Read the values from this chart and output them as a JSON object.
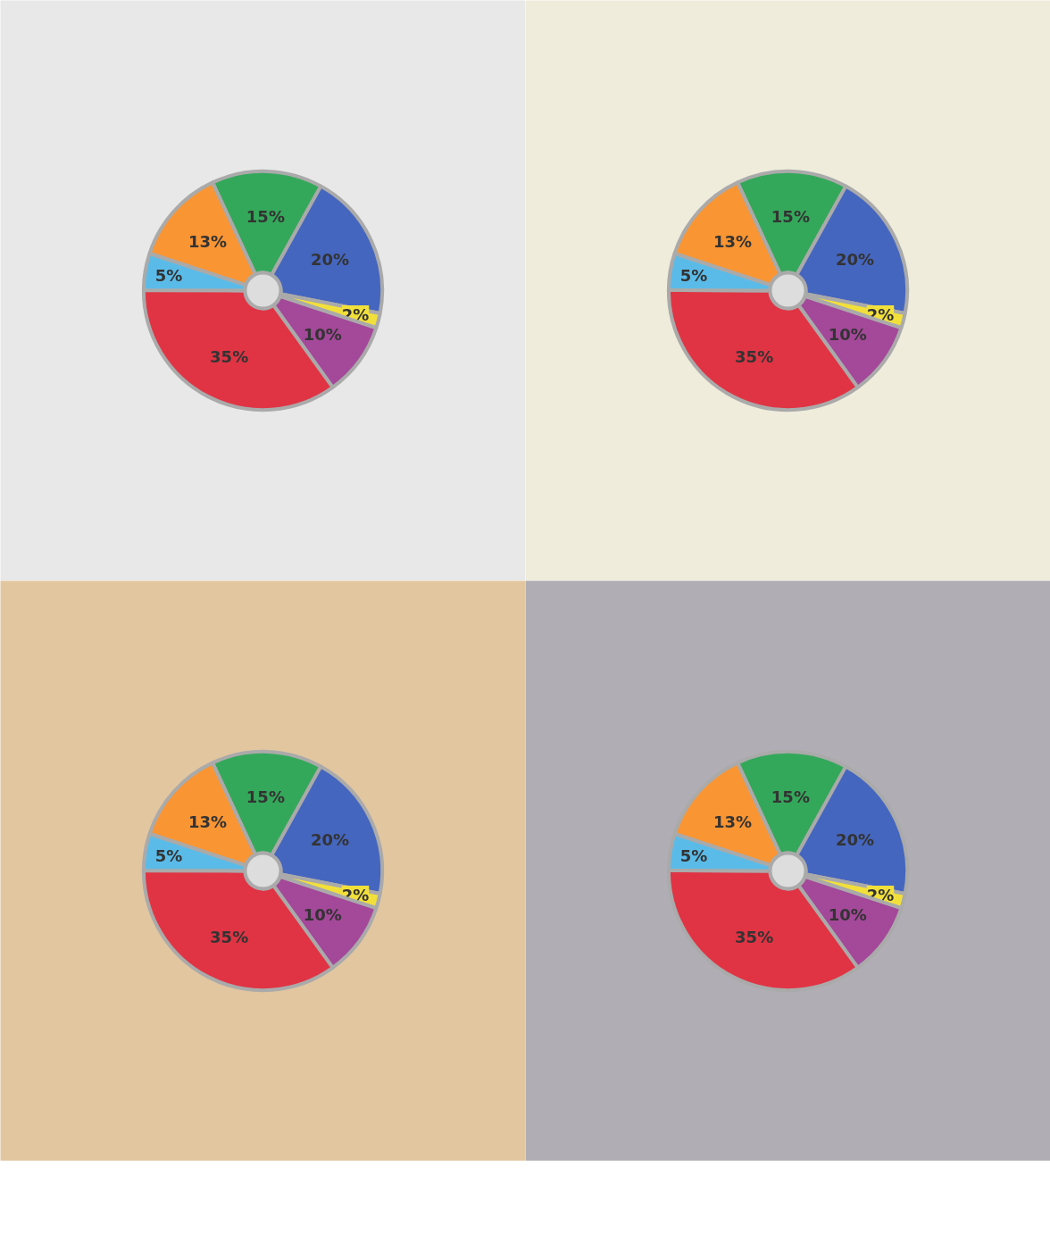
{
  "chart_data": [
    {
      "type": "donut",
      "categories": [
        null,
        null,
        null,
        null,
        null,
        null,
        null
      ],
      "values": [
        15,
        20,
        2,
        10,
        35,
        5,
        13
      ],
      "colors": [
        "#34a85a",
        "#4566bf",
        "#f2e03a",
        "#a4489a",
        "#e03444",
        "#5bbbe8",
        "#f99533"
      ],
      "value_labels": [
        "15%",
        "20%",
        "2%",
        "10%",
        "35%",
        "5%",
        "13%"
      ]
    },
    {
      "type": "donut",
      "categories": [
        null,
        null,
        null,
        null,
        null,
        null,
        null
      ],
      "values": [
        15,
        20,
        2,
        10,
        35,
        5,
        13
      ],
      "colors": [
        "#34a85a",
        "#4566bf",
        "#f2e03a",
        "#a4489a",
        "#e03444",
        "#5bbbe8",
        "#f99533"
      ],
      "value_labels": [
        "15%",
        "20%",
        "2%",
        "10%",
        "35%",
        "5%",
        "13%"
      ]
    },
    {
      "type": "donut",
      "categories": [
        null,
        null,
        null,
        null,
        null,
        null,
        null
      ],
      "values": [
        15,
        20,
        2,
        10,
        35,
        5,
        13
      ],
      "colors": [
        "#34a85a",
        "#4566bf",
        "#f2e03a",
        "#a4489a",
        "#e03444",
        "#5bbbe8",
        "#f99533"
      ],
      "value_labels": [
        "15%",
        "20%",
        "2%",
        "10%",
        "35%",
        "5%",
        "13%"
      ]
    },
    {
      "type": "donut",
      "categories": [
        null,
        null,
        null,
        null,
        null,
        null,
        null
      ],
      "values": [
        15,
        20,
        2,
        10,
        35,
        5,
        13
      ],
      "colors": [
        "#34a85a",
        "#4566bf",
        "#f2e03a",
        "#a4489a",
        "#e03444",
        "#5bbbe8",
        "#f99533"
      ],
      "value_labels": [
        "15%",
        "20%",
        "2%",
        "10%",
        "35%",
        "5%",
        "13%"
      ]
    }
  ]
}
